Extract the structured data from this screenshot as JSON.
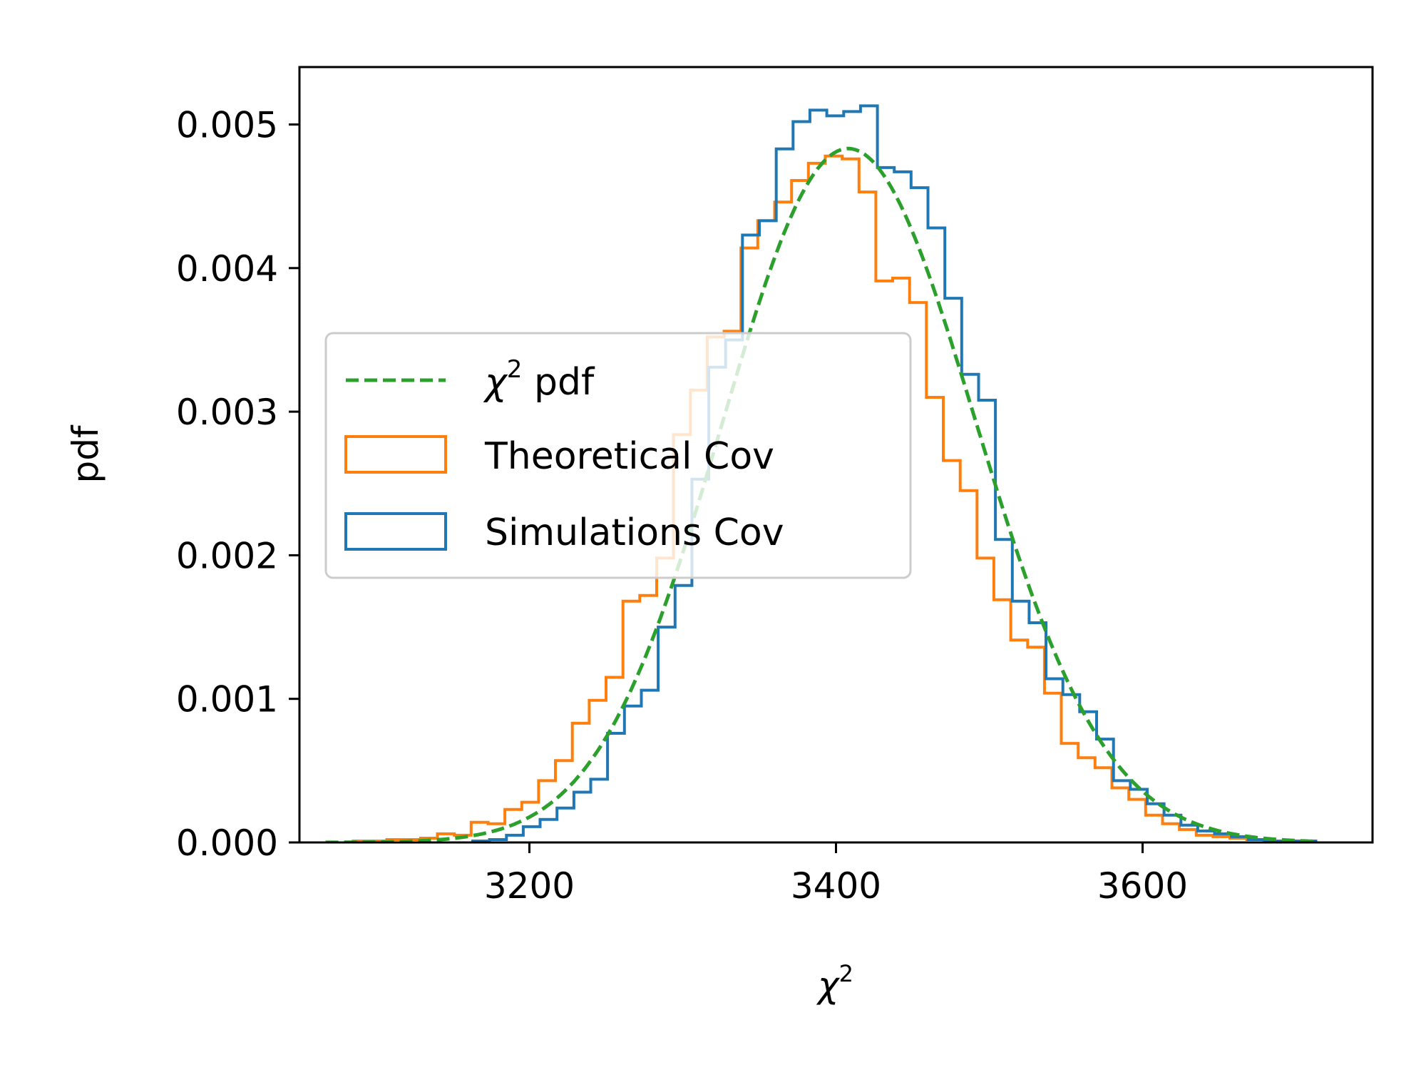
{
  "chart_data": {
    "type": "step-histogram",
    "xlabel": "χ",
    "xlabel_superscript": "2",
    "ylabel": "pdf",
    "xlim": [
      3050,
      3750
    ],
    "ylim": [
      0,
      0.0054
    ],
    "x_ticks": [
      3200,
      3400,
      3600
    ],
    "x_tick_labels": [
      "3200",
      "3400",
      "3600"
    ],
    "y_ticks": [
      0,
      0.001,
      0.002,
      0.003,
      0.004,
      0.005
    ],
    "y_tick_labels": [
      "0.000",
      "0.001",
      "0.002",
      "0.003",
      "0.004",
      "0.005"
    ],
    "grid": false,
    "legend": {
      "position": "center-left",
      "entries": [
        {
          "symbol": "χ",
          "superscript": "2",
          "text": " pdf",
          "style": "dashed-line",
          "color": "#2ca02c"
        },
        {
          "text": "Theoretical Cov",
          "style": "box",
          "color": "#ff7f0e"
        },
        {
          "text": "Simulations Cov",
          "style": "box",
          "color": "#1f77b4"
        }
      ]
    },
    "series": [
      {
        "name": "Theoretical Cov",
        "color": "#ff7f0e",
        "bin_edges": [
          3085,
          3096,
          3107,
          3118,
          3129,
          3140,
          3151,
          3162,
          3173,
          3184,
          3195,
          3206,
          3217,
          3228,
          3239,
          3250,
          3261,
          3272,
          3283,
          3294,
          3305,
          3316,
          3327,
          3338,
          3349,
          3360,
          3371,
          3382,
          3393,
          3404,
          3415,
          3426,
          3437,
          3448,
          3459,
          3470,
          3481,
          3492,
          3503,
          3514,
          3525,
          3536,
          3547,
          3558,
          3569,
          3580,
          3591,
          3602,
          3613,
          3624,
          3635,
          3646,
          3657,
          3668,
          3679,
          3690
        ],
        "values": [
          1e-05,
          1e-05,
          2e-05,
          2e-05,
          3e-05,
          6e-05,
          5e-05,
          0.00014,
          0.00013,
          0.00023,
          0.00028,
          0.00043,
          0.00057,
          0.00083,
          0.00099,
          0.00115,
          0.00168,
          0.00172,
          0.00198,
          0.00284,
          0.00315,
          0.00352,
          0.00356,
          0.00414,
          0.00433,
          0.00446,
          0.00461,
          0.00473,
          0.00478,
          0.00476,
          0.00453,
          0.00391,
          0.00393,
          0.00376,
          0.0031,
          0.00266,
          0.00245,
          0.00198,
          0.00169,
          0.00141,
          0.00136,
          0.00104,
          0.00069,
          0.00059,
          0.00052,
          0.00038,
          0.0003,
          0.00019,
          0.00013,
          9e-05,
          5e-05,
          4e-05,
          3e-05,
          2e-05,
          1e-05
        ]
      },
      {
        "name": "Simulations Cov",
        "color": "#1f77b4",
        "bin_edges": [
          3163,
          3174,
          3185,
          3196,
          3207,
          3218,
          3229,
          3240,
          3251,
          3262,
          3273,
          3284,
          3295,
          3306,
          3317,
          3328,
          3339,
          3350,
          3361,
          3372,
          3383,
          3394,
          3405,
          3416,
          3427,
          3438,
          3449,
          3460,
          3471,
          3482,
          3493,
          3504,
          3515,
          3526,
          3537,
          3548,
          3559,
          3570,
          3581,
          3592,
          3603,
          3614,
          3625,
          3636,
          3647,
          3658,
          3669,
          3680,
          3691,
          3702,
          3713
        ],
        "values": [
          1e-05,
          2e-05,
          5e-05,
          0.00011,
          0.00016,
          0.00024,
          0.00035,
          0.00044,
          0.00076,
          0.00095,
          0.00106,
          0.0015,
          0.00179,
          0.00253,
          0.00331,
          0.0035,
          0.00423,
          0.00433,
          0.00483,
          0.00502,
          0.0051,
          0.00506,
          0.00509,
          0.00513,
          0.0047,
          0.00467,
          0.00456,
          0.00428,
          0.00379,
          0.00326,
          0.00308,
          0.00211,
          0.00168,
          0.00153,
          0.00114,
          0.00103,
          0.00091,
          0.00072,
          0.00043,
          0.00037,
          0.00027,
          0.00019,
          0.00012,
          8e-05,
          6e-05,
          4e-05,
          2e-05,
          1e-05,
          1e-05,
          1e-05
        ]
      },
      {
        "name": "χ² pdf",
        "color": "#2ca02c",
        "distribution": "chi-square",
        "dof": 3410,
        "x_range": [
          3067,
          3715
        ]
      }
    ]
  }
}
